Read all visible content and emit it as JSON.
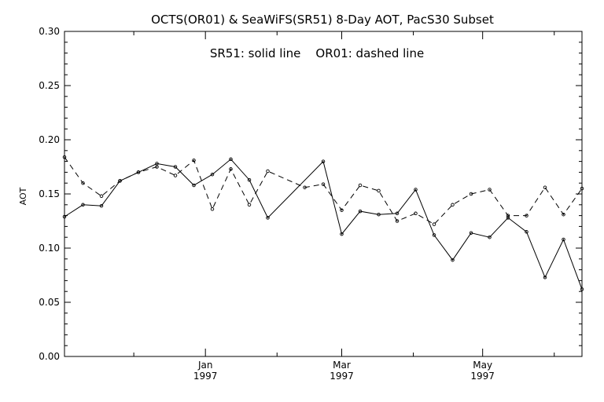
{
  "chart_data": {
    "type": "line",
    "title": "OCTS(OR01) & SeaWiFS(SR51) 8-Day AOT, PacS30 Subset",
    "annotation": "SR51: solid line    OR01: dashed line",
    "ylabel": "AOT",
    "xlabel": "",
    "ylim": [
      0,
      0.3
    ],
    "y_ticks": [
      "0.00",
      "0.05",
      "0.10",
      "0.15",
      "0.20",
      "0.25",
      "0.30"
    ],
    "x_ticks": [
      {
        "month": "Jan",
        "year": "1997"
      },
      {
        "month": "Mar",
        "year": "1997"
      },
      {
        "month": "May",
        "year": "1997"
      }
    ],
    "grid": false,
    "x": [
      "1996-11-01",
      "1996-11-09",
      "1996-11-17",
      "1996-11-25",
      "1996-12-03",
      "1996-12-11",
      "1996-12-19",
      "1996-12-27",
      "1997-01-04",
      "1997-01-12",
      "1997-01-20",
      "1997-01-28",
      "1997-02-05",
      "1997-02-13",
      "1997-02-21",
      "1997-03-01",
      "1997-03-09",
      "1997-03-17",
      "1997-03-25",
      "1997-04-02",
      "1997-04-10",
      "1997-04-18",
      "1997-04-26",
      "1997-05-04",
      "1997-05-12",
      "1997-05-20",
      "1997-05-28",
      "1997-06-05",
      "1997-06-13"
    ],
    "series": [
      {
        "name": "SR51",
        "style": "solid",
        "values": [
          0.129,
          0.14,
          0.139,
          0.162,
          0.17,
          0.178,
          0.175,
          0.158,
          0.168,
          0.182,
          0.163,
          0.128,
          null,
          null,
          0.18,
          0.113,
          0.134,
          0.131,
          0.132,
          0.154,
          0.112,
          0.089,
          0.114,
          0.11,
          0.128,
          0.115,
          0.073,
          0.108,
          0.062
        ]
      },
      {
        "name": "OR01",
        "style": "dashed",
        "values": [
          0.184,
          0.16,
          0.148,
          0.162,
          0.17,
          0.175,
          0.167,
          0.181,
          0.136,
          0.173,
          0.14,
          0.171,
          null,
          0.156,
          0.159,
          0.135,
          0.158,
          0.153,
          0.125,
          0.132,
          0.122,
          0.14,
          0.15,
          0.154,
          0.13,
          0.13,
          0.156,
          0.131,
          0.155
        ]
      }
    ]
  }
}
